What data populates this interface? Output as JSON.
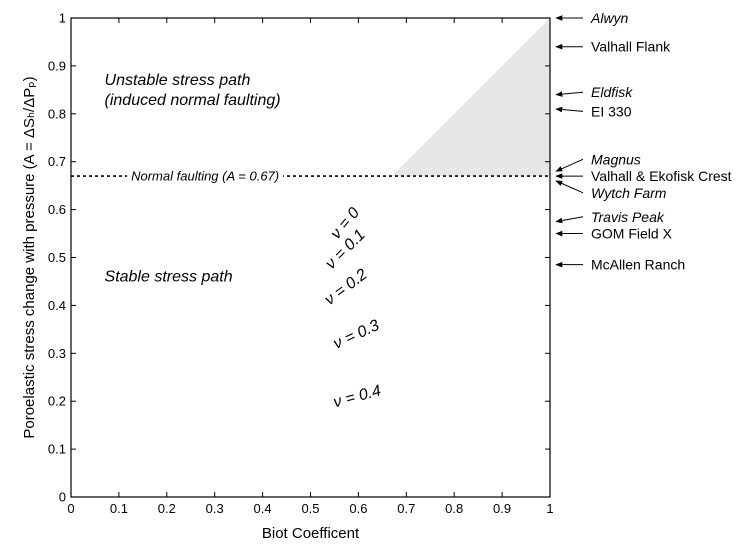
{
  "chart_data": {
    "type": "line",
    "xlabel": "Biot Coefficent",
    "ylabel": "Poroelastic stress change with pressure (A = ΔSₕ/ΔPₚ)",
    "xlim": [
      0,
      1
    ],
    "ylim": [
      0,
      1
    ],
    "x_ticks": [
      "0",
      "0.1",
      "0.2",
      "0.3",
      "0.4",
      "0.5",
      "0.6",
      "0.7",
      "0.8",
      "0.9",
      "1"
    ],
    "y_ticks": [
      "0",
      "0.1",
      "0.2",
      "0.3",
      "0.4",
      "0.5",
      "0.6",
      "0.7",
      "0.8",
      "0.9",
      "1"
    ],
    "grid": false,
    "reference_line": {
      "y": 0.67,
      "style": "dashed",
      "label": "Normal faulting (A = 0.67)"
    },
    "shaded_region": {
      "points": [
        [
          0.67,
          0.67
        ],
        [
          1.0,
          1.0
        ],
        [
          1.0,
          0.67
        ]
      ],
      "color": "#e6e6e6"
    },
    "region_labels": [
      {
        "lines": [
          "Unstable stress path",
          "(induced normal faulting)"
        ],
        "x": 0.07,
        "y": 0.86
      },
      {
        "lines": [
          "Stable stress path"
        ],
        "x": 0.07,
        "y": 0.45
      }
    ],
    "poisson_labels": [
      {
        "text": "ν = 0",
        "x": 0.58,
        "y": 0.565,
        "angle": -50
      },
      {
        "text": "ν = 0.1",
        "x": 0.58,
        "y": 0.51,
        "angle": -45
      },
      {
        "text": "ν = 0.2",
        "x": 0.58,
        "y": 0.43,
        "angle": -37
      },
      {
        "text": "ν = 0.3",
        "x": 0.6,
        "y": 0.33,
        "angle": -25
      },
      {
        "text": "ν = 0.4",
        "x": 0.6,
        "y": 0.2,
        "angle": -15
      }
    ],
    "field_markers": [
      {
        "name": "Alwyn",
        "value": 1.0,
        "italic": true,
        "label_y": 1.0
      },
      {
        "name": "Valhall Flank",
        "value": 0.94,
        "italic": false,
        "label_y": 0.94
      },
      {
        "name": "Eldfisk",
        "value": 0.84,
        "italic": true,
        "label_y": 0.845
      },
      {
        "name": "EI 330",
        "value": 0.81,
        "italic": false,
        "label_y": 0.805
      },
      {
        "name": "Magnus",
        "value": 0.68,
        "italic": true,
        "label_y": 0.705
      },
      {
        "name": "Valhall & Ekofisk Crest",
        "value": 0.67,
        "italic": false,
        "label_y": 0.67
      },
      {
        "name": "Wytch Farm",
        "value": 0.66,
        "italic": true,
        "label_y": 0.635
      },
      {
        "name": "Travis Peak",
        "value": 0.575,
        "italic": true,
        "label_y": 0.585
      },
      {
        "name": "GOM Field X",
        "value": 0.55,
        "italic": false,
        "label_y": 0.55
      },
      {
        "name": "McAllen Ranch",
        "value": 0.485,
        "italic": false,
        "label_y": 0.485
      }
    ]
  }
}
